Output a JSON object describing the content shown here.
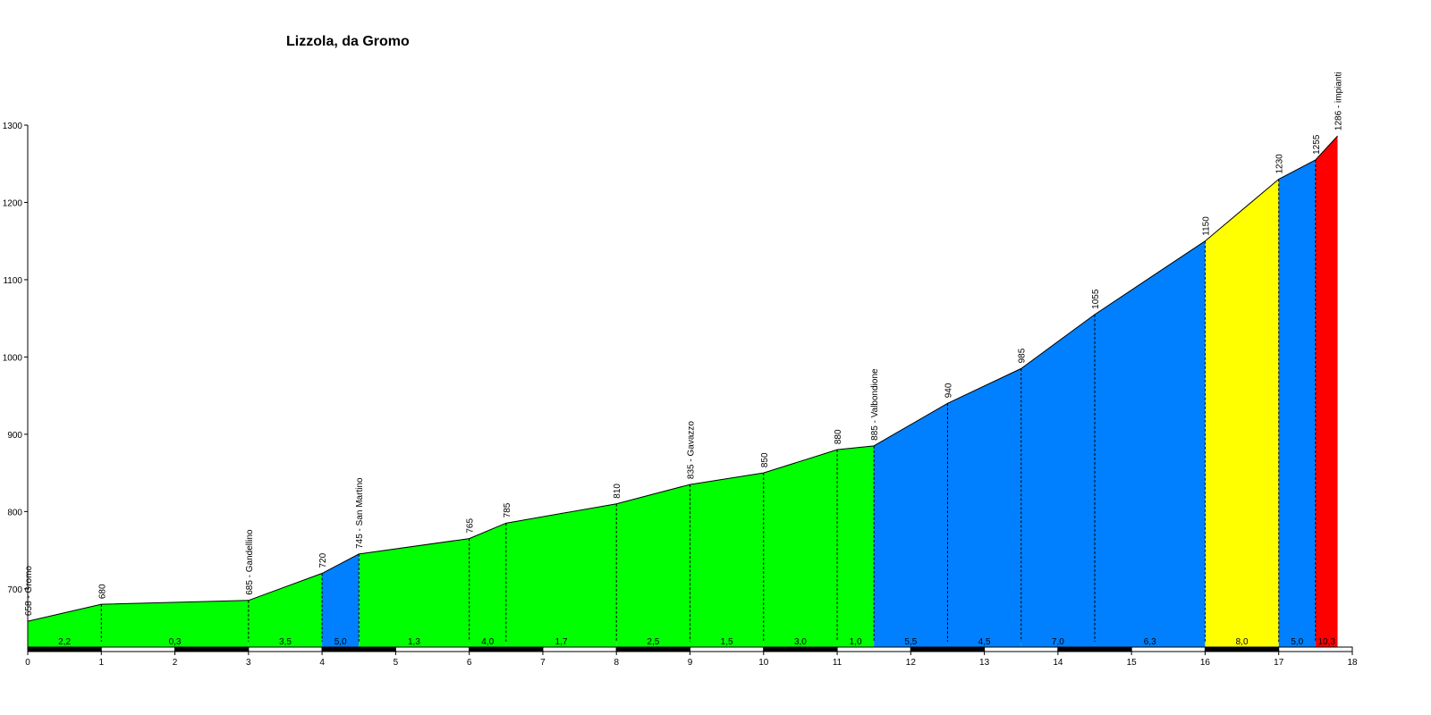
{
  "chart_data": {
    "type": "area",
    "title": "Lizzola, da Gromo",
    "xlabel": "",
    "ylabel": "",
    "xlim": [
      0,
      18
    ],
    "ylim": [
      620,
      1300
    ],
    "x_ticks": [
      0,
      1,
      2,
      3,
      4,
      5,
      6,
      7,
      8,
      9,
      10,
      11,
      12,
      13,
      14,
      15,
      16,
      17,
      18
    ],
    "y_ticks": [
      700,
      800,
      900,
      1000,
      1100,
      1200,
      1300
    ],
    "grid": false,
    "legend": "none",
    "profile": [
      {
        "x": 0,
        "y": 658,
        "label": "658 - Gromo"
      },
      {
        "x": 1,
        "y": 680,
        "label": "680"
      },
      {
        "x": 3,
        "y": 685,
        "label": "685 - Gandellino"
      },
      {
        "x": 4,
        "y": 720,
        "label": "720"
      },
      {
        "x": 4.5,
        "y": 745,
        "label": "745 - San Martino"
      },
      {
        "x": 6,
        "y": 765,
        "label": "765"
      },
      {
        "x": 6.5,
        "y": 785,
        "label": "785"
      },
      {
        "x": 8,
        "y": 810,
        "label": "810"
      },
      {
        "x": 9,
        "y": 835,
        "label": "835 - Gavazzo"
      },
      {
        "x": 10,
        "y": 850,
        "label": "850"
      },
      {
        "x": 11,
        "y": 880,
        "label": "880"
      },
      {
        "x": 11.5,
        "y": 885,
        "label": "885 - Valbondione"
      },
      {
        "x": 12.5,
        "y": 940,
        "label": "940"
      },
      {
        "x": 13.5,
        "y": 985,
        "label": "985"
      },
      {
        "x": 14.5,
        "y": 1055,
        "label": "1055"
      },
      {
        "x": 16,
        "y": 1150,
        "label": "1150"
      },
      {
        "x": 17,
        "y": 1230,
        "label": "1230"
      },
      {
        "x": 17.5,
        "y": 1255,
        "label": "1255"
      },
      {
        "x": 17.8,
        "y": 1286,
        "label": "1286 - impianti"
      }
    ],
    "segments": [
      {
        "x0": 0,
        "x1": 1,
        "gradient": "2,2",
        "color": "#00ff00"
      },
      {
        "x0": 1,
        "x1": 3,
        "gradient": "0,3",
        "color": "#00ff00"
      },
      {
        "x0": 3,
        "x1": 4,
        "gradient": "3,5",
        "color": "#00ff00"
      },
      {
        "x0": 4,
        "x1": 4.5,
        "gradient": "5,0",
        "color": "#0080ff"
      },
      {
        "x0": 4.5,
        "x1": 6,
        "gradient": "1,3",
        "color": "#00ff00"
      },
      {
        "x0": 6,
        "x1": 6.5,
        "gradient": "4,0",
        "color": "#00ff00"
      },
      {
        "x0": 6.5,
        "x1": 8,
        "gradient": "1,7",
        "color": "#00ff00"
      },
      {
        "x0": 8,
        "x1": 9,
        "gradient": "2,5",
        "color": "#00ff00"
      },
      {
        "x0": 9,
        "x1": 10,
        "gradient": "1,5",
        "color": "#00ff00"
      },
      {
        "x0": 10,
        "x1": 11,
        "gradient": "3,0",
        "color": "#00ff00"
      },
      {
        "x0": 11,
        "x1": 11.5,
        "gradient": "1,0",
        "color": "#00ff00"
      },
      {
        "x0": 11.5,
        "x1": 12.5,
        "gradient": "5,5",
        "color": "#0080ff"
      },
      {
        "x0": 12.5,
        "x1": 13.5,
        "gradient": "4,5",
        "color": "#0080ff"
      },
      {
        "x0": 13.5,
        "x1": 14.5,
        "gradient": "7,0",
        "color": "#0080ff"
      },
      {
        "x0": 14.5,
        "x1": 16,
        "gradient": "6,3",
        "color": "#0080ff"
      },
      {
        "x0": 16,
        "x1": 17,
        "gradient": "8,0",
        "color": "#ffff00"
      },
      {
        "x0": 17,
        "x1": 17.5,
        "gradient": "5,0",
        "color": "#0080ff"
      },
      {
        "x0": 17.5,
        "x1": 17.8,
        "gradient": "10,3",
        "color": "#ff0000"
      }
    ]
  }
}
